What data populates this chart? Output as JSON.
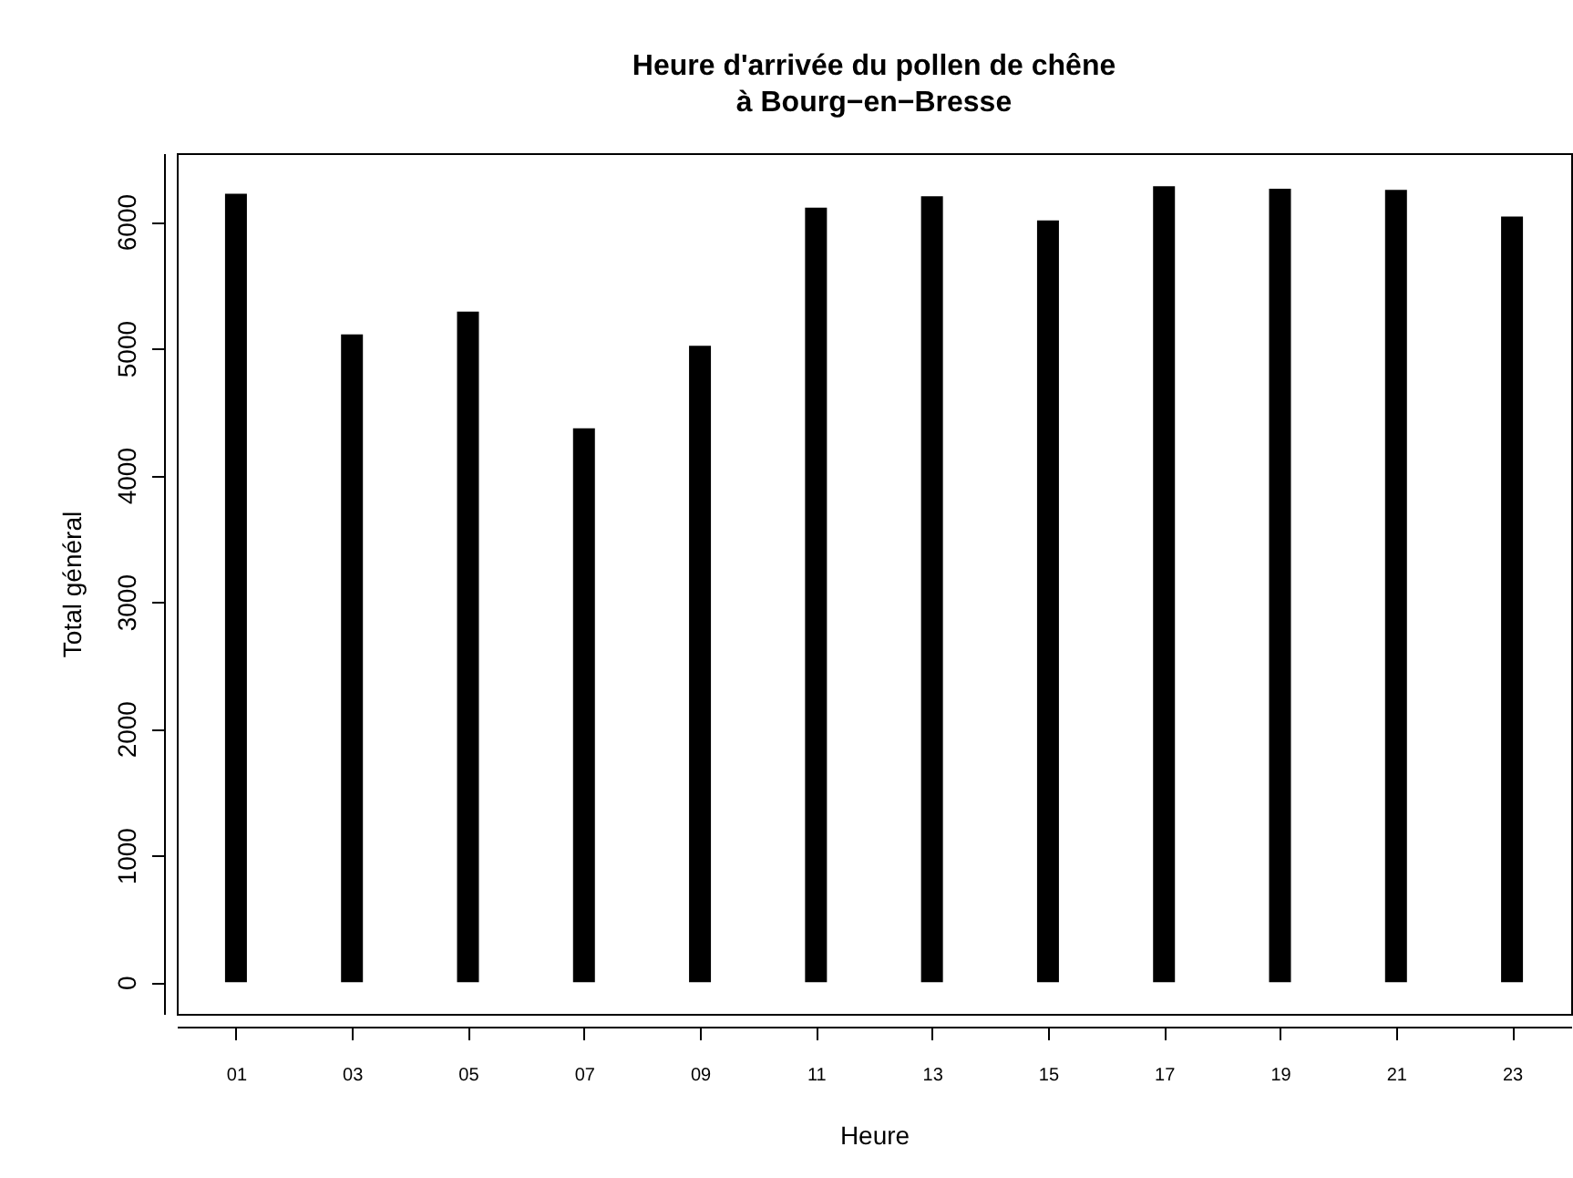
{
  "chart_data": {
    "type": "bar",
    "title": "Heure d'arrivée du pollen de chêne\nà Bourg−en−Bresse",
    "xlabel": "Heure",
    "ylabel": "Total général",
    "categories": [
      "01",
      "03",
      "05",
      "07",
      "09",
      "11",
      "13",
      "15",
      "17",
      "19",
      "21",
      "23"
    ],
    "values": [
      6220,
      5110,
      5290,
      4370,
      5020,
      6110,
      6200,
      6010,
      6280,
      6260,
      6250,
      6040
    ],
    "color": "#000000",
    "ylim": [
      -250,
      6540
    ],
    "yticks": [
      0,
      1000,
      2000,
      3000,
      4000,
      5000,
      6000
    ],
    "grid": false
  }
}
